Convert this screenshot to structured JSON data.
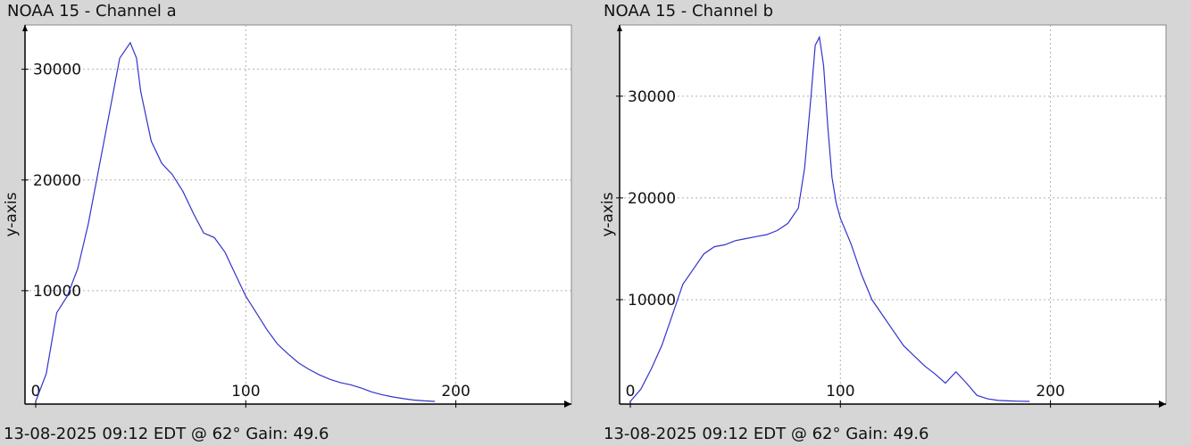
{
  "charts": [
    {
      "title": "NOAA 15 - Channel a",
      "footer": "13-08-2025 09:12 EDT @ 62° Gain: 49.6"
    },
    {
      "title": "NOAA 15 - Channel b",
      "footer": "13-08-2025 09:12 EDT @ 62° Gain: 49.6"
    }
  ],
  "chart_data": [
    {
      "type": "line",
      "title": "NOAA 15 - Channel a",
      "xlabel": "",
      "ylabel": "y-axis",
      "xlim": [
        0,
        255
      ],
      "ylim": [
        0,
        34000
      ],
      "xticks": [
        0,
        100,
        200
      ],
      "yticks": [
        10000,
        20000,
        30000
      ],
      "grid": true,
      "color": "#3333cc",
      "x": [
        0,
        5,
        10,
        15,
        20,
        25,
        30,
        35,
        40,
        45,
        48,
        50,
        55,
        60,
        65,
        70,
        75,
        80,
        85,
        90,
        95,
        100,
        105,
        110,
        115,
        120,
        125,
        130,
        135,
        140,
        145,
        150,
        155,
        160,
        165,
        170,
        175,
        180,
        185,
        190
      ],
      "y": [
        0,
        2500,
        8000,
        9500,
        12000,
        16000,
        21000,
        26000,
        31000,
        32400,
        31000,
        28000,
        23500,
        21500,
        20500,
        19000,
        17000,
        15200,
        14800,
        13500,
        11500,
        9500,
        8000,
        6500,
        5200,
        4300,
        3500,
        2900,
        2400,
        2000,
        1700,
        1500,
        1200,
        850,
        600,
        400,
        250,
        120,
        50,
        0
      ]
    },
    {
      "type": "line",
      "title": "NOAA 15 - Channel b",
      "xlabel": "",
      "ylabel": "y-axis",
      "xlim": [
        0,
        255
      ],
      "ylim": [
        0,
        37000
      ],
      "xticks": [
        0,
        100,
        200
      ],
      "yticks": [
        10000,
        20000,
        30000
      ],
      "grid": true,
      "color": "#3333cc",
      "x": [
        0,
        5,
        10,
        15,
        20,
        25,
        30,
        35,
        40,
        45,
        50,
        55,
        60,
        65,
        70,
        75,
        80,
        83,
        86,
        88,
        90,
        92,
        94,
        96,
        98,
        100,
        105,
        110,
        115,
        120,
        125,
        130,
        135,
        140,
        145,
        150,
        155,
        160,
        165,
        170,
        175,
        180,
        185,
        190
      ],
      "y": [
        0,
        1200,
        3200,
        5500,
        8500,
        11500,
        13000,
        14500,
        15200,
        15400,
        15800,
        16000,
        16200,
        16400,
        16800,
        17500,
        19000,
        23000,
        30000,
        35000,
        35800,
        33000,
        27000,
        22000,
        19500,
        18000,
        15500,
        12500,
        10000,
        8500,
        7000,
        5500,
        4500,
        3500,
        2700,
        1800,
        2900,
        1800,
        600,
        250,
        100,
        50,
        20,
        0
      ]
    }
  ]
}
